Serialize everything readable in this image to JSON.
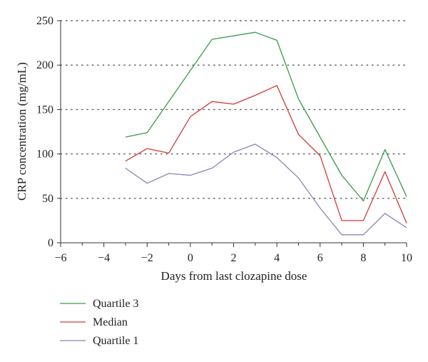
{
  "chart_data": {
    "type": "line",
    "title": "",
    "xlabel": "Days from last clozapine dose",
    "ylabel": "CRP concentration (mg/mL)",
    "xlim": [
      -6,
      10
    ],
    "ylim": [
      0,
      250
    ],
    "xticks": [
      -6,
      -4,
      -2,
      0,
      2,
      4,
      6,
      8,
      10
    ],
    "yticks": [
      0,
      50,
      100,
      150,
      200,
      250
    ],
    "xtick_labels": [
      "−6",
      "−4",
      "−2",
      "0",
      "2",
      "4",
      "6",
      "8",
      "10"
    ],
    "ytick_labels": [
      "0",
      "50",
      "100",
      "150",
      "200",
      "250"
    ],
    "grid": "horizontal dotted",
    "legend_position": "below",
    "series": [
      {
        "name": "Quartile 3",
        "color": "#3a9a4a",
        "x": [
          -3,
          -2,
          1,
          3,
          4,
          5,
          7,
          8,
          9,
          10
        ],
        "y": [
          119,
          124,
          229,
          237,
          228,
          162,
          76,
          47,
          105,
          52
        ]
      },
      {
        "name": "Median",
        "color": "#d23a3a",
        "x": [
          -3,
          -2,
          -1,
          0,
          1,
          2,
          3,
          4,
          5,
          6,
          7,
          8,
          9,
          10
        ],
        "y": [
          92,
          106,
          101,
          142,
          159,
          156,
          166,
          177,
          122,
          98,
          25,
          25,
          80,
          22
        ]
      },
      {
        "name": "Quartile 1",
        "color": "#8a84b8",
        "x": [
          -3,
          -2,
          -1,
          0,
          1,
          2,
          3,
          4,
          5,
          6,
          7,
          8,
          9,
          10
        ],
        "y": [
          84,
          67,
          78,
          76,
          84,
          102,
          111,
          96,
          73,
          39,
          9,
          9,
          33,
          17
        ]
      }
    ]
  }
}
